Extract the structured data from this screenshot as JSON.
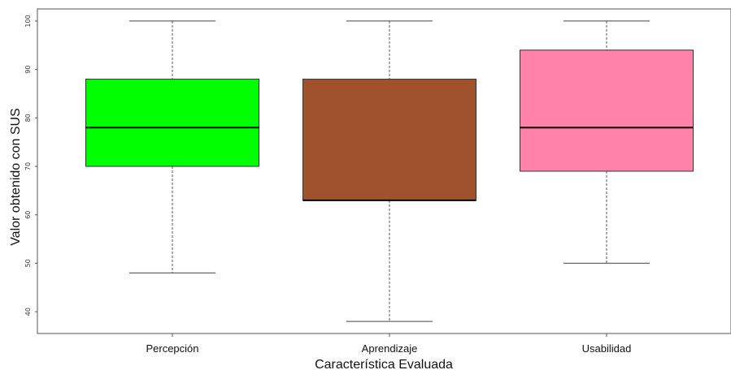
{
  "chart_data": {
    "type": "boxplot",
    "xlabel": "Característica Evaluada",
    "ylabel": "Valor obtenido con SUS",
    "ylim": [
      35.5,
      102.5
    ],
    "yticks": [
      "40",
      "50",
      "60",
      "70",
      "80",
      "90",
      "100"
    ],
    "grid": false,
    "categories": [
      "Percepción",
      "Aprendizaje",
      "Usabilidad"
    ],
    "boxes": [
      {
        "min": 48,
        "q1": 70,
        "median": 78,
        "q3": 88,
        "max": 100,
        "color": "#00ff00"
      },
      {
        "min": 38,
        "q1": 63,
        "median": 63,
        "q3": 88,
        "max": 100,
        "color": "#a0522d"
      },
      {
        "min": 50,
        "q1": 69,
        "median": 78,
        "q3": 94,
        "max": 100,
        "color": "#ff83a8"
      }
    ]
  }
}
